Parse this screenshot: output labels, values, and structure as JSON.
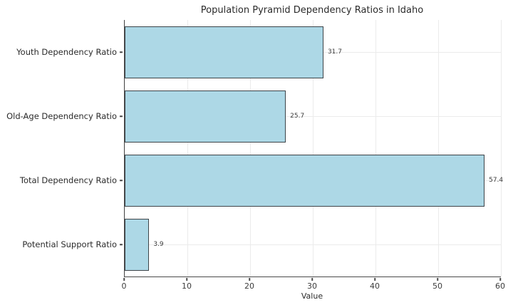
{
  "chart_data": {
    "type": "bar",
    "orientation": "horizontal",
    "title": "Population Pyramid Dependency Ratios in Idaho",
    "xlabel": "Value",
    "ylabel": "",
    "categories": [
      "Youth Dependency Ratio",
      "Old-Age Dependency Ratio",
      "Total Dependency Ratio",
      "Potential Support Ratio"
    ],
    "values": [
      31.7,
      25.7,
      57.4,
      3.9
    ],
    "value_labels": [
      "31.7",
      "25.7",
      "57.4",
      "3.9"
    ],
    "xlim": [
      0,
      60
    ],
    "xticks": [
      0,
      10,
      20,
      30,
      40,
      50,
      60
    ],
    "grid": true,
    "legend": false,
    "colors": {
      "bar_fill": "#ADD8E6",
      "bar_edge": "#3d4449",
      "grid": "#ebebeb",
      "spine": "#4a4a4a",
      "text": "#2b2b2b"
    }
  }
}
